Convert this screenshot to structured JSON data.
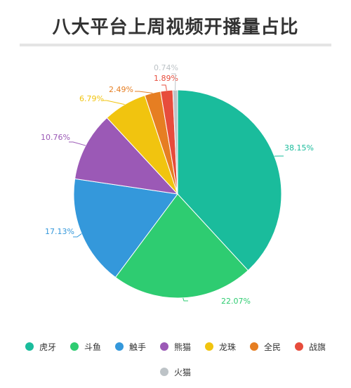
{
  "chart_data": {
    "type": "pie",
    "title": "八大平台上周视频开播量占比",
    "categories": [
      "虎牙",
      "斗鱼",
      "触手",
      "熊猫",
      "龙珠",
      "全民",
      "战旗",
      "火猫"
    ],
    "values": [
      38.15,
      22.07,
      17.13,
      10.76,
      6.79,
      2.49,
      1.89,
      0.74
    ],
    "value_labels": [
      "38.15%",
      "22.07%",
      "17.13%",
      "10.76%",
      "6.79%",
      "2.49%",
      "1.89%",
      "0.74%"
    ],
    "colors": [
      "#1abc9c",
      "#2ecc71",
      "#3498db",
      "#9b59b6",
      "#f1c40f",
      "#e67e22",
      "#e74c3c",
      "#bdc3c7"
    ],
    "legend_position": "bottom"
  }
}
